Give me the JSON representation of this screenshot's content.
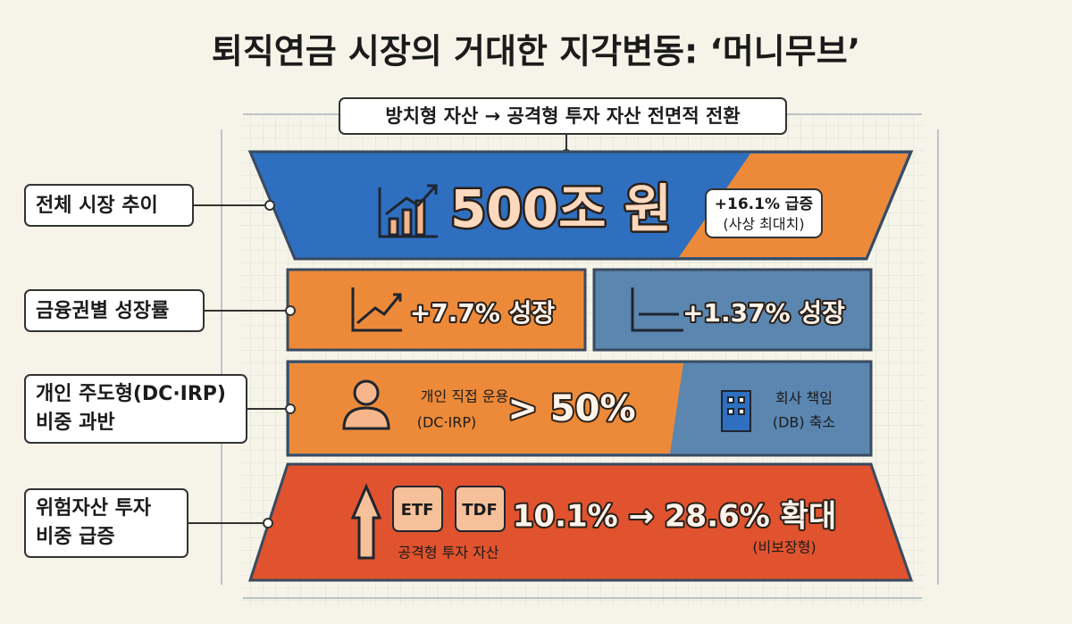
{
  "title": "퇴직연금 시장의 거대한 지각변동: ‘머니무브’",
  "banner": "방치형 자산 → 공격형 투자 자산 전면적 전환",
  "rows": [
    {
      "label": [
        "전체 시장 추이"
      ],
      "value": "500조 원",
      "note": "+16.1% 급증",
      "sub": "(사상 최대치)"
    },
    {
      "label": [
        "금융권별 성장률"
      ],
      "left": "+7.7% 성장",
      "right": "+1.37% 성장"
    },
    {
      "label": [
        "개인 주도형(DC·IRP)",
        "비중 과반"
      ],
      "left_lines": [
        "개인 직접 운용",
        "(DC·IRP)"
      ],
      "left_value": "> 50%",
      "right_lines": [
        "회사 책임",
        "(DB) 축소"
      ]
    },
    {
      "label": [
        "위험자산 투자",
        "비중 급증"
      ],
      "badges": [
        "ETF",
        "TDF"
      ],
      "caption": "공격형 투자 자산",
      "value": "10.1% → 28.6% 확대",
      "sub": "(비보장형)"
    }
  ]
}
